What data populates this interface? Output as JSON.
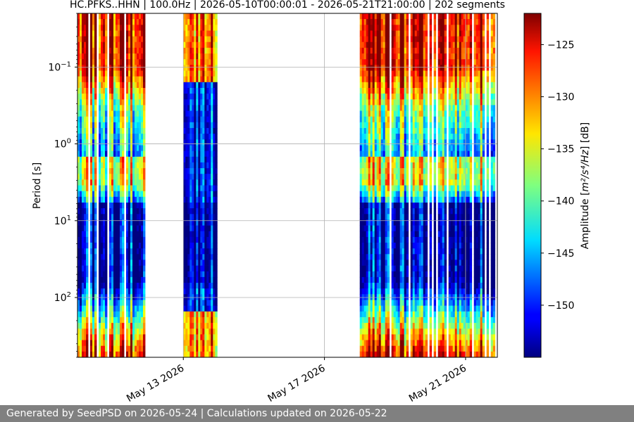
{
  "chart_data": {
    "type": "heatmap",
    "title": "HC.PFKS..HHN | 100.0Hz | 2026-05-10T00:00:01 - 2026-05-21T21:00:00 | 202 segments",
    "ylabel": "Period [s]",
    "y_scale": "log",
    "y_inverted": true,
    "ylim": [
      0.02,
      600
    ],
    "y_ticks": [
      {
        "value": 0.1,
        "base": "10",
        "exp": "−1"
      },
      {
        "value": 1,
        "base": "10",
        "exp": "0"
      },
      {
        "value": 10,
        "base": "10",
        "exp": "1"
      },
      {
        "value": 100,
        "base": "10",
        "exp": "2"
      }
    ],
    "x_ticks": [
      {
        "label": "May 13 2026",
        "day": 13
      },
      {
        "label": "May 17 2026",
        "day": 17
      },
      {
        "label": "May 21 2026",
        "day": 21
      }
    ],
    "xlim_days": [
      10.0,
      21.9
    ],
    "data_spans_days": [
      [
        10.0,
        11.9
      ],
      [
        13.0,
        13.95
      ],
      [
        18.0,
        21.9
      ]
    ],
    "grid": true,
    "colorbar": {
      "label_prefix": "Amplitude [",
      "label_math": "m²/s⁴/Hz",
      "label_suffix": "] [dB]",
      "min": -155,
      "max": -122,
      "ticks": [
        -125,
        -130,
        -135,
        -140,
        -145,
        -150
      ],
      "colormap": "jet"
    }
  },
  "footer": "Generated by SeedPSD on 2026-05-24 | Calculations updated on 2026-05-22"
}
